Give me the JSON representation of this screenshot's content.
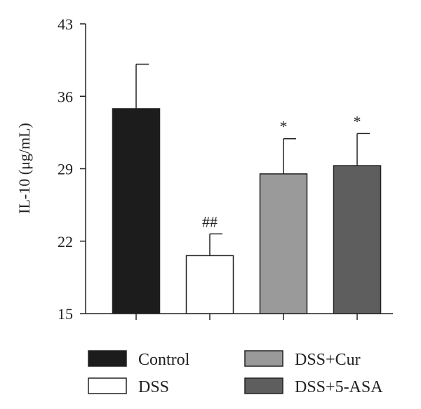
{
  "chart_data": {
    "type": "bar",
    "title": "",
    "xlabel": "",
    "ylabel": "IL-10 (μg/mL)",
    "ylim": [
      15,
      43
    ],
    "yticks": [
      15,
      22,
      29,
      36,
      43
    ],
    "grid": false,
    "legend_position": "bottom",
    "categories": [
      "Control",
      "DSS",
      "DSS+Cur",
      "DSS+5-ASA"
    ],
    "values": [
      34.8,
      20.6,
      28.5,
      29.3
    ],
    "errors": [
      4.3,
      2.1,
      3.4,
      3.1
    ],
    "annotations": [
      "",
      "##",
      "*",
      "*"
    ],
    "colors": [
      "#1c1c1c",
      "#ffffff",
      "#9a9a9a",
      "#5e5e5e"
    ]
  }
}
